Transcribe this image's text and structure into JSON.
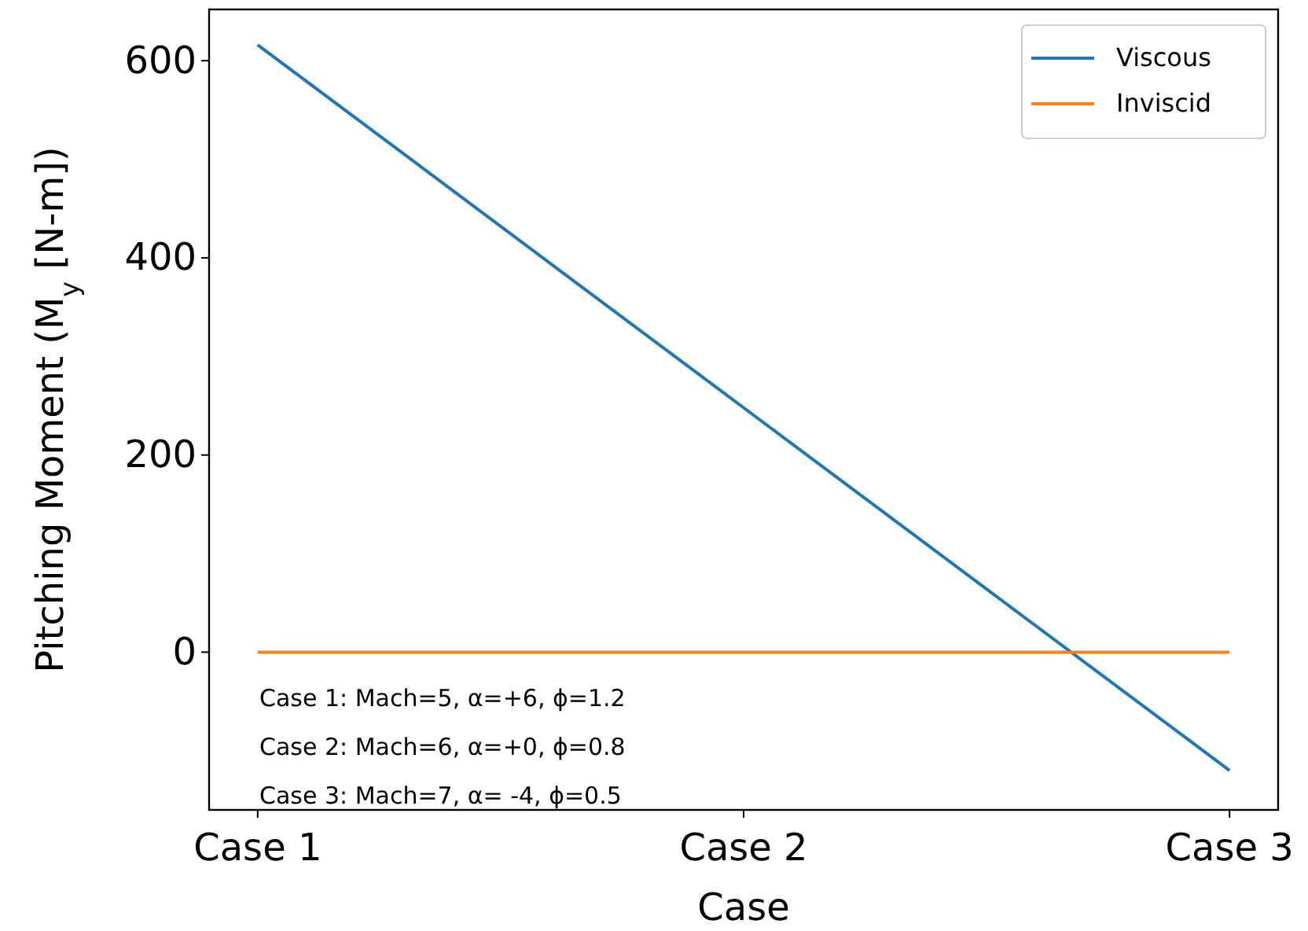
{
  "chart_data": {
    "type": "line",
    "xlabel": "Case",
    "ylabel": "Pitching Moment (M$_{y}$ [N-m])",
    "categories": [
      "Case 1",
      "Case 2",
      "Case 3"
    ],
    "series": [
      {
        "name": "Viscous",
        "color": "#1f77b4",
        "values": [
          616,
          248,
          -120
        ]
      },
      {
        "name": "Inviscid",
        "color": "#ff7f0e",
        "values": [
          0,
          0,
          0
        ]
      }
    ],
    "ylim": [
      -160,
      652
    ],
    "yticks": [
      0,
      200,
      400,
      600
    ],
    "grid": false,
    "legend": "top right",
    "line_style": "solid",
    "marker": "none",
    "annotations": [
      "Case 1: Mach=5, α=+6, ϕ=1.2",
      "Case 2: Mach=6, α=+0, ϕ=0.8",
      "Case 3: Mach=7, α= -4, ϕ=0.5"
    ]
  }
}
